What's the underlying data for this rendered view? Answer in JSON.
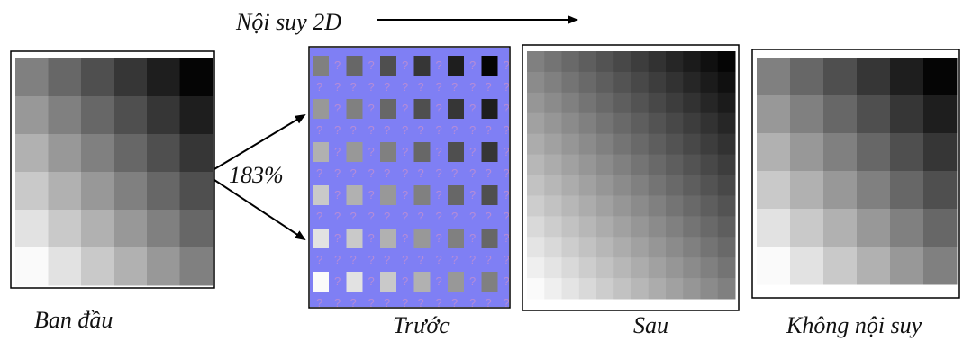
{
  "top_label": "Nội suy 2D",
  "scale_label": "183%",
  "unknown_mark": "?",
  "panels": [
    {
      "label": "Ban đầu"
    },
    {
      "label": "Trước"
    },
    {
      "label": "Sau"
    },
    {
      "label": "Không nội suy"
    }
  ]
}
